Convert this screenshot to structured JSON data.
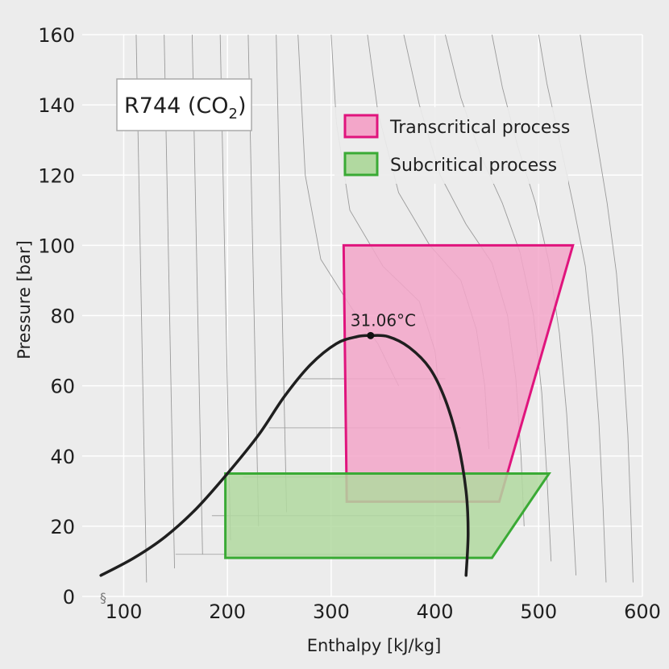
{
  "chart_data": {
    "type": "line",
    "title": "R744 (CO",
    "title_sub": "2",
    "title_close": ")",
    "xlabel": "Enthalpy [kJ/kg]",
    "ylabel": "Pressure [bar]",
    "xlim": [
      60,
      600
    ],
    "ylim": [
      0,
      160
    ],
    "x_ticks": [
      100,
      200,
      300,
      400,
      500,
      600
    ],
    "x_tick_labels": [
      "100",
      "200",
      "300",
      "400",
      "500",
      "600"
    ],
    "y_ticks": [
      0,
      20,
      40,
      60,
      80,
      100,
      120,
      140,
      160
    ],
    "y_tick_labels": [
      "0",
      "20",
      "40",
      "60",
      "80",
      "100",
      "120",
      "140",
      "160"
    ],
    "grid": true,
    "legend_position": "top-right",
    "series": [
      {
        "name": "Transcritical process",
        "kind": "cycle",
        "color": "#e0147d",
        "fill": "#f3a6c9",
        "points": [
          [
            312,
            100
          ],
          [
            533,
            100
          ],
          [
            462,
            27
          ],
          [
            315,
            27
          ]
        ]
      },
      {
        "name": "Subcritical process",
        "kind": "cycle",
        "color": "#3aaa35",
        "fill": "#b1d9a0",
        "points": [
          [
            198,
            35
          ],
          [
            510,
            35
          ],
          [
            455,
            11
          ],
          [
            198,
            11
          ]
        ]
      }
    ],
    "saturation_dome": {
      "color": "#1f1f1f",
      "points": [
        [
          78,
          6
        ],
        [
          110,
          11
        ],
        [
          140,
          17
        ],
        [
          170,
          25
        ],
        [
          200,
          35
        ],
        [
          230,
          46
        ],
        [
          255,
          57
        ],
        [
          280,
          66
        ],
        [
          305,
          72
        ],
        [
          325,
          74
        ],
        [
          338,
          74.3
        ],
        [
          355,
          74
        ],
        [
          375,
          71
        ],
        [
          395,
          65
        ],
        [
          410,
          56
        ],
        [
          422,
          44
        ],
        [
          430,
          30
        ],
        [
          432,
          18
        ],
        [
          430,
          6
        ]
      ]
    },
    "critical_point": {
      "x": 338,
      "y": 74.3,
      "label": "31.06°C"
    },
    "axis_break_symbol": "§",
    "isotherm_color": "#9a9a9a",
    "gridline_color": "#ffffff",
    "background": "#ececec"
  }
}
